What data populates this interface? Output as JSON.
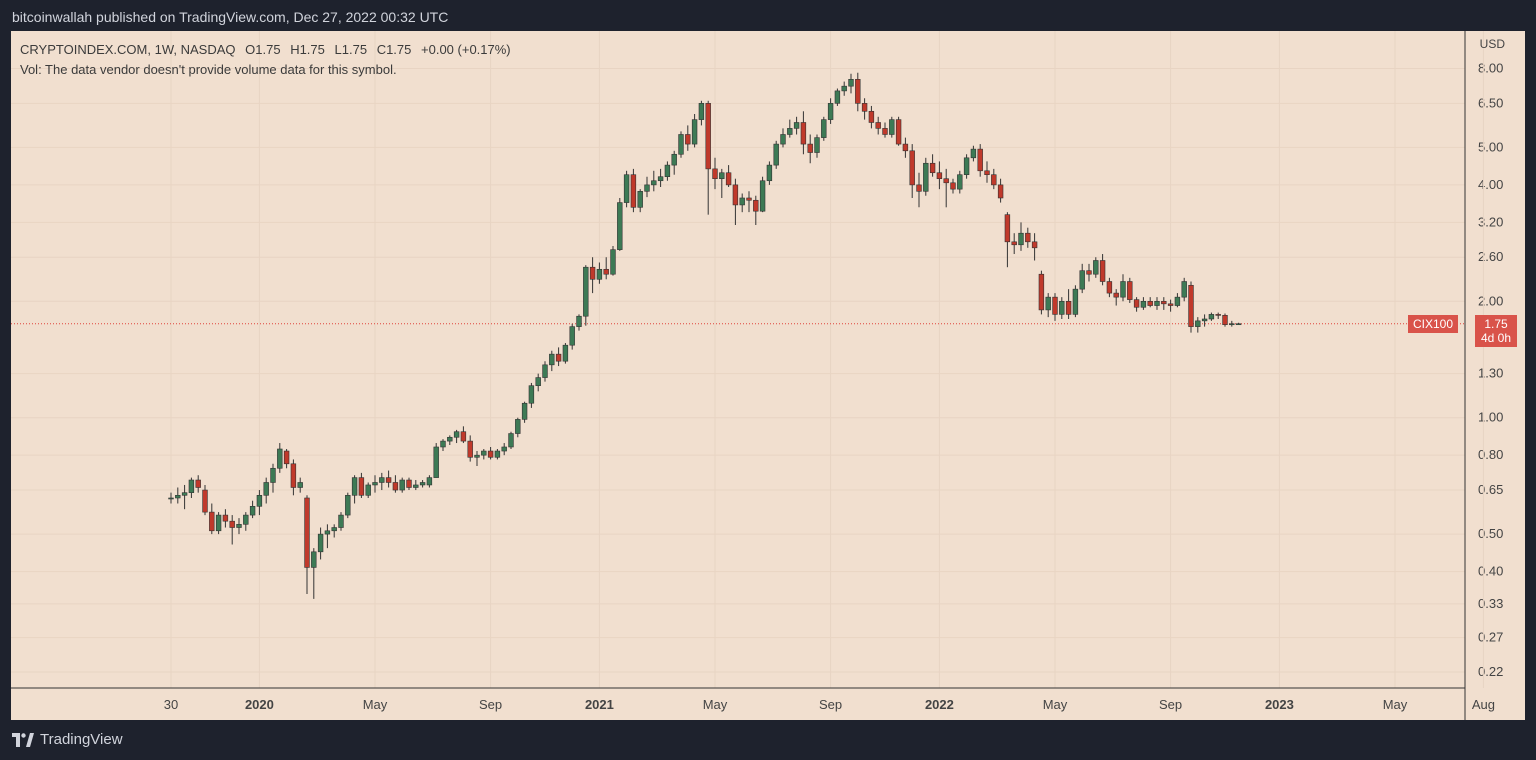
{
  "publish_info": "bitcoinwallah published on TradingView.com, Dec 27, 2022 00:32 UTC",
  "legend": {
    "symbol": "CRYPTOINDEX.COM, 1W, NASDAQ",
    "open": "O1.75",
    "high": "H1.75",
    "low": "L1.75",
    "close": "C1.75",
    "change": "+0.00 (+0.17%)",
    "volume_note": "Vol: The data vendor doesn't provide volume data for this symbol."
  },
  "currency": "USD",
  "symbol_tag": "CIX100",
  "last_price": "1.75",
  "countdown": "4d 0h",
  "brand": "TradingView",
  "colors": {
    "up": "#3d7a55",
    "down": "#c0392b",
    "background": "#f1dfcf",
    "grid": "#e8d4c3",
    "price_line": "#e0443a"
  },
  "chart_data": {
    "type": "candlestick",
    "scale": "log",
    "ylim": [
      0.2,
      10
    ],
    "y_ticks": [
      8.0,
      6.5,
      5.0,
      4.0,
      3.2,
      2.6,
      2.0,
      1.3,
      1.0,
      0.8,
      0.65,
      0.5,
      0.4,
      0.33,
      0.27,
      0.22
    ],
    "y_tick_labels": [
      "8.00",
      "6.50",
      "5.00",
      "4.00",
      "3.20",
      "2.60",
      "2.00",
      "1.30",
      "1.00",
      "0.80",
      "0.65",
      "0.50",
      "0.40",
      "0.33",
      "0.27",
      "0.22"
    ],
    "x_ticks": [
      {
        "label": "30",
        "bold": false
      },
      {
        "label": "2020",
        "bold": true
      },
      {
        "label": "May",
        "bold": false
      },
      {
        "label": "Sep",
        "bold": false
      },
      {
        "label": "2021",
        "bold": true
      },
      {
        "label": "May",
        "bold": false
      },
      {
        "label": "Sep",
        "bold": false
      },
      {
        "label": "2022",
        "bold": true
      },
      {
        "label": "May",
        "bold": false
      },
      {
        "label": "Sep",
        "bold": false
      },
      {
        "label": "2023",
        "bold": true
      },
      {
        "label": "May",
        "bold": false
      },
      {
        "label": "Aug",
        "bold": false
      }
    ],
    "x_tick_weeks": [
      0,
      13,
      30,
      47,
      63,
      80,
      97,
      113,
      130,
      147,
      163,
      180,
      193
    ],
    "total_weeks": 194,
    "last_price": 1.75,
    "candles": [
      [
        0.62,
        0.64,
        0.6,
        0.62
      ],
      [
        0.62,
        0.66,
        0.6,
        0.63
      ],
      [
        0.63,
        0.67,
        0.58,
        0.64
      ],
      [
        0.64,
        0.7,
        0.62,
        0.69
      ],
      [
        0.69,
        0.71,
        0.64,
        0.66
      ],
      [
        0.65,
        0.67,
        0.56,
        0.57
      ],
      [
        0.57,
        0.6,
        0.5,
        0.51
      ],
      [
        0.51,
        0.57,
        0.5,
        0.56
      ],
      [
        0.56,
        0.58,
        0.52,
        0.54
      ],
      [
        0.54,
        0.56,
        0.47,
        0.52
      ],
      [
        0.52,
        0.55,
        0.5,
        0.53
      ],
      [
        0.53,
        0.57,
        0.51,
        0.56
      ],
      [
        0.56,
        0.61,
        0.55,
        0.59
      ],
      [
        0.59,
        0.65,
        0.56,
        0.63
      ],
      [
        0.63,
        0.7,
        0.6,
        0.68
      ],
      [
        0.68,
        0.76,
        0.64,
        0.74
      ],
      [
        0.74,
        0.86,
        0.72,
        0.83
      ],
      [
        0.82,
        0.83,
        0.74,
        0.76
      ],
      [
        0.76,
        0.78,
        0.63,
        0.66
      ],
      [
        0.66,
        0.7,
        0.64,
        0.68
      ],
      [
        0.62,
        0.63,
        0.35,
        0.41
      ],
      [
        0.41,
        0.46,
        0.34,
        0.45
      ],
      [
        0.45,
        0.52,
        0.43,
        0.5
      ],
      [
        0.5,
        0.53,
        0.46,
        0.51
      ],
      [
        0.51,
        0.53,
        0.49,
        0.52
      ],
      [
        0.52,
        0.57,
        0.51,
        0.56
      ],
      [
        0.56,
        0.64,
        0.55,
        0.63
      ],
      [
        0.63,
        0.71,
        0.6,
        0.7
      ],
      [
        0.7,
        0.72,
        0.62,
        0.63
      ],
      [
        0.63,
        0.68,
        0.62,
        0.67
      ],
      [
        0.67,
        0.71,
        0.64,
        0.68
      ],
      [
        0.68,
        0.72,
        0.65,
        0.7
      ],
      [
        0.7,
        0.73,
        0.66,
        0.68
      ],
      [
        0.68,
        0.71,
        0.64,
        0.65
      ],
      [
        0.65,
        0.7,
        0.64,
        0.69
      ],
      [
        0.69,
        0.7,
        0.65,
        0.66
      ],
      [
        0.66,
        0.69,
        0.65,
        0.67
      ],
      [
        0.67,
        0.69,
        0.66,
        0.68
      ],
      [
        0.67,
        0.71,
        0.66,
        0.7
      ],
      [
        0.7,
        0.86,
        0.7,
        0.84
      ],
      [
        0.84,
        0.88,
        0.82,
        0.87
      ],
      [
        0.87,
        0.9,
        0.85,
        0.89
      ],
      [
        0.89,
        0.93,
        0.86,
        0.92
      ],
      [
        0.92,
        0.95,
        0.86,
        0.87
      ],
      [
        0.87,
        0.9,
        0.77,
        0.79
      ],
      [
        0.79,
        0.82,
        0.75,
        0.8
      ],
      [
        0.8,
        0.83,
        0.78,
        0.82
      ],
      [
        0.82,
        0.84,
        0.78,
        0.79
      ],
      [
        0.79,
        0.83,
        0.78,
        0.82
      ],
      [
        0.82,
        0.86,
        0.8,
        0.84
      ],
      [
        0.84,
        0.92,
        0.83,
        0.91
      ],
      [
        0.91,
        1.0,
        0.89,
        0.99
      ],
      [
        0.99,
        1.1,
        0.97,
        1.09
      ],
      [
        1.09,
        1.23,
        1.06,
        1.21
      ],
      [
        1.21,
        1.3,
        1.17,
        1.27
      ],
      [
        1.27,
        1.4,
        1.24,
        1.37
      ],
      [
        1.37,
        1.49,
        1.32,
        1.46
      ],
      [
        1.46,
        1.52,
        1.36,
        1.4
      ],
      [
        1.4,
        1.56,
        1.38,
        1.54
      ],
      [
        1.54,
        1.75,
        1.5,
        1.72
      ],
      [
        1.72,
        1.85,
        1.68,
        1.83
      ],
      [
        1.83,
        2.48,
        1.73,
        2.45
      ],
      [
        2.45,
        2.6,
        2.1,
        2.28
      ],
      [
        2.28,
        2.52,
        2.22,
        2.42
      ],
      [
        2.42,
        2.6,
        2.28,
        2.35
      ],
      [
        2.35,
        2.78,
        2.33,
        2.72
      ],
      [
        2.72,
        3.7,
        2.7,
        3.6
      ],
      [
        3.6,
        4.35,
        3.5,
        4.25
      ],
      [
        4.25,
        4.4,
        3.4,
        3.5
      ],
      [
        3.5,
        3.9,
        3.4,
        3.85
      ],
      [
        3.85,
        4.2,
        3.72,
        4.0
      ],
      [
        4.0,
        4.35,
        3.85,
        4.1
      ],
      [
        4.1,
        4.4,
        3.95,
        4.2
      ],
      [
        4.2,
        4.6,
        4.1,
        4.5
      ],
      [
        4.5,
        4.9,
        4.25,
        4.8
      ],
      [
        4.8,
        5.5,
        4.7,
        5.4
      ],
      [
        5.4,
        5.7,
        4.9,
        5.1
      ],
      [
        5.1,
        6.1,
        5.0,
        5.9
      ],
      [
        5.9,
        6.6,
        5.7,
        6.5
      ],
      [
        6.5,
        6.6,
        3.35,
        4.4
      ],
      [
        4.4,
        4.7,
        3.9,
        4.15
      ],
      [
        4.15,
        4.4,
        3.7,
        4.3
      ],
      [
        4.3,
        4.5,
        3.95,
        4.0
      ],
      [
        4.0,
        4.15,
        3.15,
        3.55
      ],
      [
        3.55,
        3.8,
        3.4,
        3.7
      ],
      [
        3.7,
        3.85,
        3.4,
        3.65
      ],
      [
        3.65,
        3.75,
        3.15,
        3.42
      ],
      [
        3.42,
        4.2,
        3.4,
        4.1
      ],
      [
        4.1,
        4.6,
        4.0,
        4.5
      ],
      [
        4.5,
        5.2,
        4.4,
        5.1
      ],
      [
        5.1,
        5.6,
        5.0,
        5.4
      ],
      [
        5.4,
        5.9,
        5.3,
        5.6
      ],
      [
        5.6,
        6.0,
        5.4,
        5.8
      ],
      [
        5.8,
        6.2,
        4.8,
        5.1
      ],
      [
        5.1,
        5.4,
        4.55,
        4.85
      ],
      [
        4.85,
        5.4,
        4.7,
        5.3
      ],
      [
        5.3,
        6.0,
        5.2,
        5.9
      ],
      [
        5.9,
        6.7,
        5.75,
        6.5
      ],
      [
        6.5,
        7.1,
        6.4,
        7.0
      ],
      [
        7.0,
        7.4,
        6.8,
        7.2
      ],
      [
        7.2,
        7.75,
        6.9,
        7.5
      ],
      [
        7.5,
        7.8,
        6.2,
        6.5
      ],
      [
        6.5,
        6.7,
        5.9,
        6.2
      ],
      [
        6.2,
        6.4,
        5.6,
        5.8
      ],
      [
        5.8,
        6.0,
        5.4,
        5.6
      ],
      [
        5.6,
        5.8,
        5.3,
        5.4
      ],
      [
        5.4,
        6.0,
        5.3,
        5.9
      ],
      [
        5.9,
        6.0,
        5.05,
        5.1
      ],
      [
        5.1,
        5.3,
        4.7,
        4.9
      ],
      [
        4.9,
        5.1,
        3.7,
        4.0
      ],
      [
        4.0,
        4.3,
        3.5,
        3.85
      ],
      [
        3.85,
        4.7,
        3.75,
        4.55
      ],
      [
        4.55,
        4.8,
        4.2,
        4.3
      ],
      [
        4.3,
        4.6,
        3.9,
        4.15
      ],
      [
        4.15,
        4.4,
        3.5,
        4.05
      ],
      [
        4.05,
        4.15,
        3.8,
        3.9
      ],
      [
        3.9,
        4.35,
        3.8,
        4.25
      ],
      [
        4.25,
        4.8,
        4.15,
        4.7
      ],
      [
        4.7,
        5.05,
        4.6,
        4.95
      ],
      [
        4.95,
        5.1,
        4.2,
        4.35
      ],
      [
        4.35,
        4.6,
        4.05,
        4.25
      ],
      [
        4.25,
        4.4,
        3.9,
        4.0
      ],
      [
        4.0,
        4.15,
        3.6,
        3.7
      ],
      [
        3.35,
        3.4,
        2.45,
        2.85
      ],
      [
        2.85,
        3.0,
        2.65,
        2.8
      ],
      [
        2.8,
        3.2,
        2.7,
        3.0
      ],
      [
        3.0,
        3.1,
        2.75,
        2.85
      ],
      [
        2.85,
        3.0,
        2.55,
        2.75
      ],
      [
        2.35,
        2.4,
        1.85,
        1.9
      ],
      [
        1.9,
        2.1,
        1.82,
        2.05
      ],
      [
        2.05,
        2.1,
        1.78,
        1.85
      ],
      [
        1.85,
        2.05,
        1.8,
        2.0
      ],
      [
        2.0,
        2.15,
        1.8,
        1.85
      ],
      [
        1.85,
        2.2,
        1.82,
        2.15
      ],
      [
        2.15,
        2.5,
        2.1,
        2.4
      ],
      [
        2.4,
        2.5,
        2.25,
        2.35
      ],
      [
        2.35,
        2.6,
        2.3,
        2.55
      ],
      [
        2.55,
        2.65,
        2.2,
        2.25
      ],
      [
        2.25,
        2.3,
        2.05,
        2.1
      ],
      [
        2.1,
        2.15,
        1.95,
        2.05
      ],
      [
        2.05,
        2.35,
        2.0,
        2.25
      ],
      [
        2.25,
        2.3,
        1.98,
        2.02
      ],
      [
        2.02,
        2.05,
        1.88,
        1.93
      ],
      [
        1.93,
        2.05,
        1.9,
        2.0
      ],
      [
        2.0,
        2.05,
        1.93,
        1.95
      ],
      [
        1.95,
        2.05,
        1.9,
        2.0
      ],
      [
        2.0,
        2.05,
        1.9,
        1.97
      ],
      [
        1.97,
        2.02,
        1.88,
        1.95
      ],
      [
        1.95,
        2.1,
        1.93,
        2.05
      ],
      [
        2.05,
        2.3,
        2.0,
        2.25
      ],
      [
        2.2,
        2.25,
        1.66,
        1.72
      ],
      [
        1.72,
        1.82,
        1.66,
        1.78
      ],
      [
        1.78,
        1.85,
        1.72,
        1.8
      ],
      [
        1.8,
        1.87,
        1.78,
        1.85
      ],
      [
        1.85,
        1.87,
        1.8,
        1.84
      ],
      [
        1.84,
        1.86,
        1.72,
        1.74
      ],
      [
        1.74,
        1.78,
        1.72,
        1.75
      ],
      [
        1.75,
        1.76,
        1.74,
        1.75
      ]
    ]
  }
}
